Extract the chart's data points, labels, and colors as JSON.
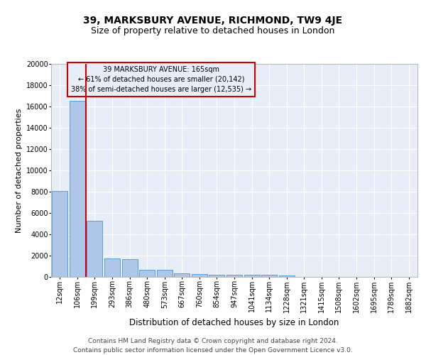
{
  "title1": "39, MARKSBURY AVENUE, RICHMOND, TW9 4JE",
  "title2": "Size of property relative to detached houses in London",
  "xlabel": "Distribution of detached houses by size in London",
  "ylabel": "Number of detached properties",
  "bar_color": "#aec6e8",
  "bar_edge_color": "#5a9fd4",
  "bg_color": "#e8eef8",
  "annotation_box_color": "#cc0000",
  "vline_color": "#cc0000",
  "annotation_text": "39 MARKSBURY AVENUE: 165sqm\n← 61% of detached houses are smaller (20,142)\n38% of semi-detached houses are larger (12,535) →",
  "property_size": 165,
  "categories": [
    "12sqm",
    "106sqm",
    "199sqm",
    "293sqm",
    "386sqm",
    "480sqm",
    "573sqm",
    "667sqm",
    "760sqm",
    "854sqm",
    "947sqm",
    "1041sqm",
    "1134sqm",
    "1228sqm",
    "1321sqm",
    "1415sqm",
    "1508sqm",
    "1602sqm",
    "1695sqm",
    "1789sqm",
    "1882sqm"
  ],
  "values": [
    8100,
    16500,
    5250,
    1750,
    1700,
    700,
    650,
    330,
    280,
    230,
    200,
    180,
    170,
    160,
    0,
    0,
    0,
    0,
    0,
    0,
    0
  ],
  "ylim": [
    0,
    20000
  ],
  "yticks": [
    0,
    2000,
    4000,
    6000,
    8000,
    10000,
    12000,
    14000,
    16000,
    18000,
    20000
  ],
  "footnote": "Contains HM Land Registry data © Crown copyright and database right 2024.\nContains public sector information licensed under the Open Government Licence v3.0.",
  "title1_fontsize": 10,
  "title2_fontsize": 9,
  "tick_fontsize": 7,
  "ylabel_fontsize": 8,
  "xlabel_fontsize": 8.5,
  "annotation_fontsize": 7,
  "footnote_fontsize": 6.5
}
